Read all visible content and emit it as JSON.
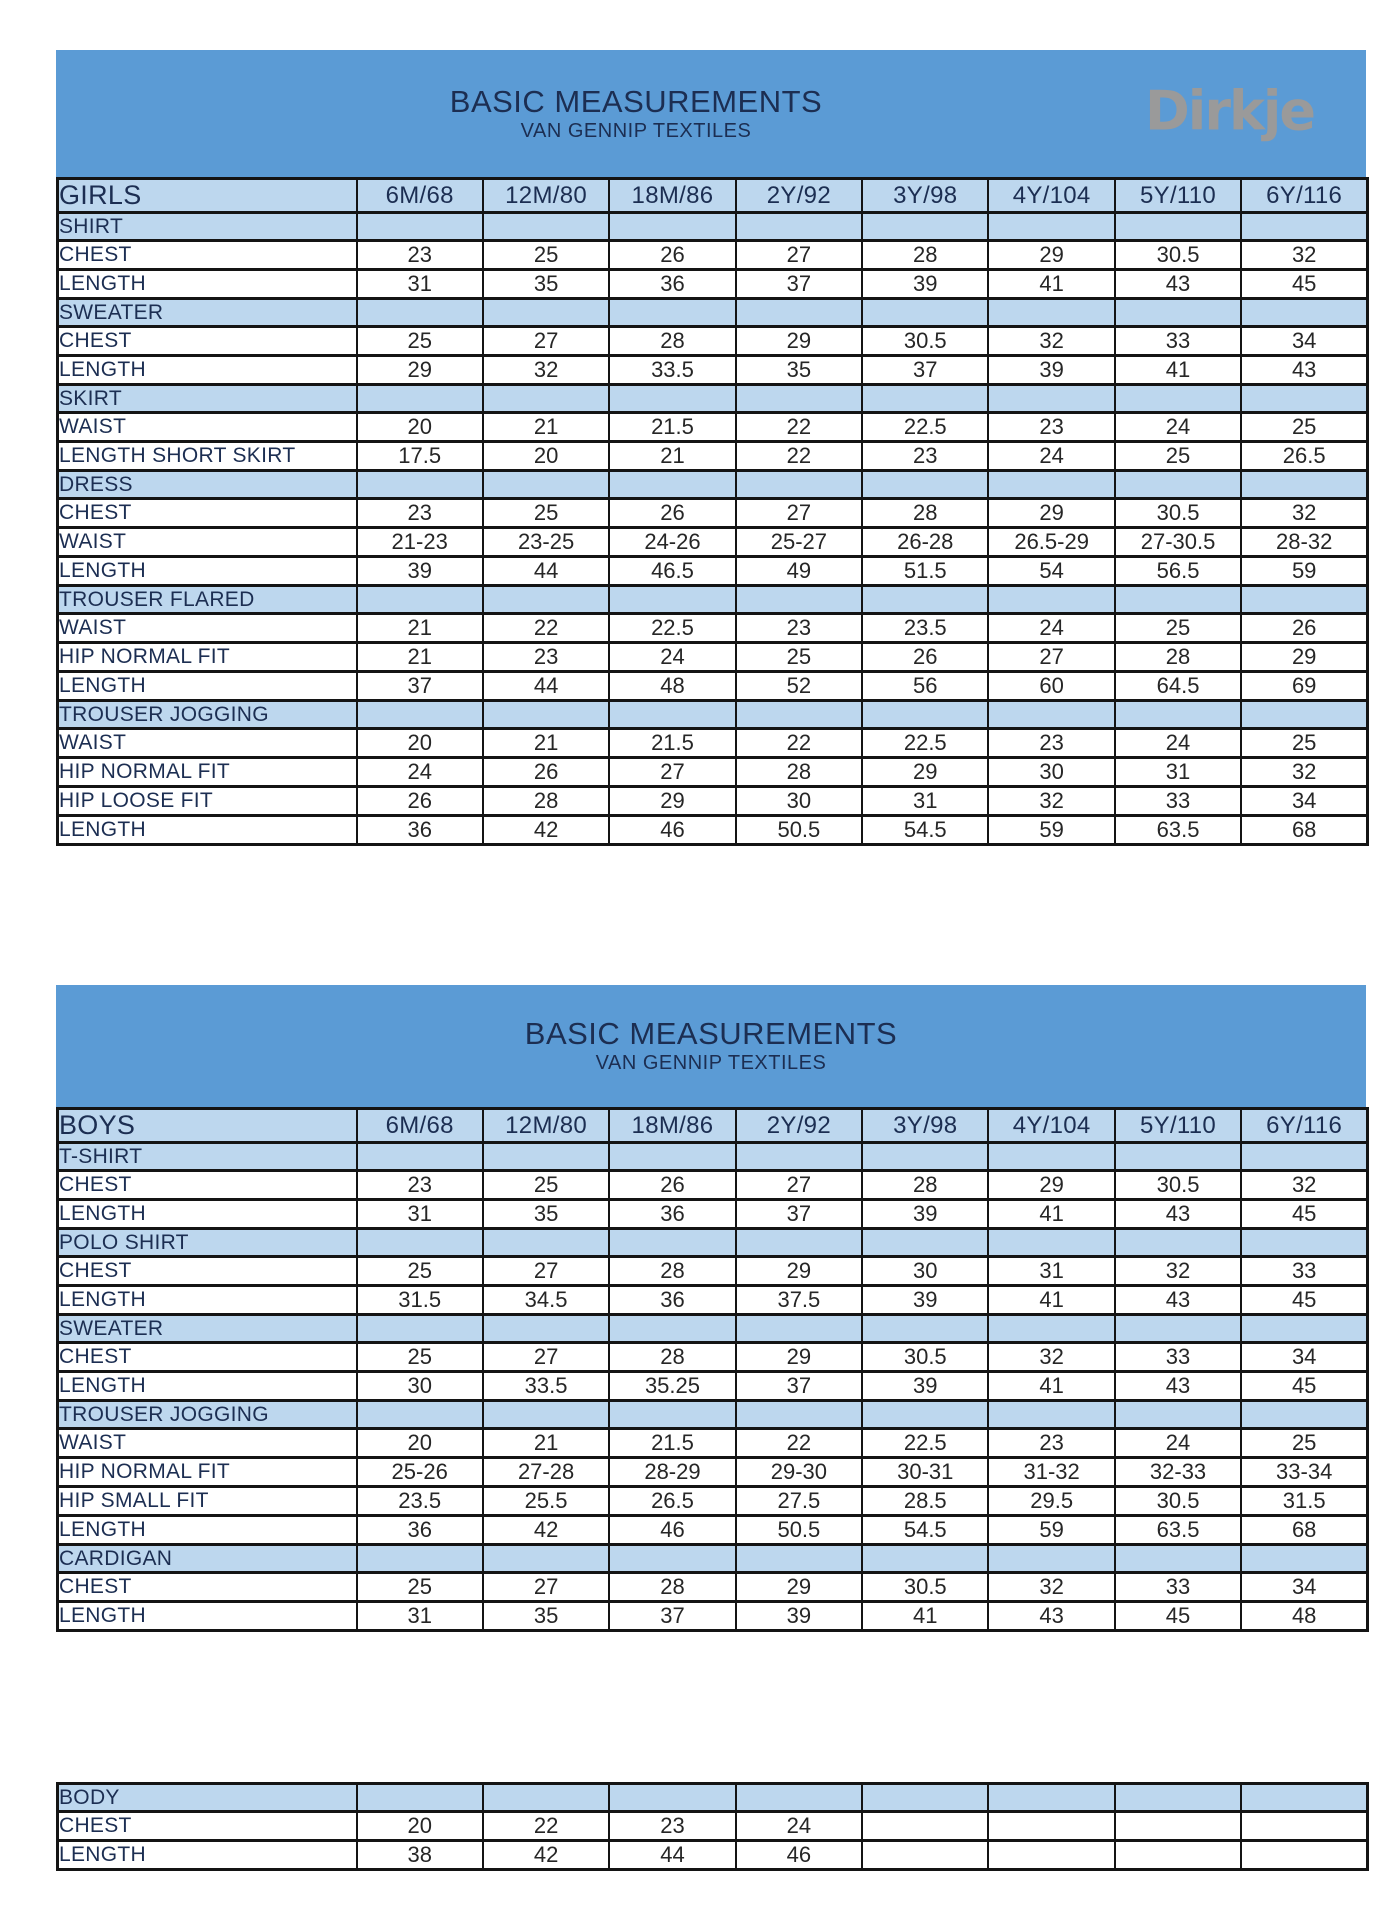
{
  "theme": {
    "panel_blue": "#5b9bd5",
    "row_blue": "#bdd7ee",
    "border": "#141414",
    "navy": "#1c2e52",
    "value_ink": "#262626",
    "logo_gray": "#9a9a9a"
  },
  "tables": [
    {
      "id": "girls",
      "title": "BASIC MEASUREMENTS",
      "subtitle": "VAN GENNIP TEXTILES",
      "logo": "Dirkje",
      "header": {
        "label": "GIRLS",
        "sizes": [
          "6M/68",
          "12M/80",
          "18M/86",
          "2Y/92",
          "3Y/98",
          "4Y/104",
          "5Y/110",
          "6Y/116"
        ]
      },
      "rows": [
        {
          "type": "section",
          "label": "SHIRT"
        },
        {
          "type": "data",
          "label": "CHEST",
          "values": [
            "23",
            "25",
            "26",
            "27",
            "28",
            "29",
            "30.5",
            "32"
          ]
        },
        {
          "type": "data",
          "label": "LENGTH",
          "values": [
            "31",
            "35",
            "36",
            "37",
            "39",
            "41",
            "43",
            "45"
          ]
        },
        {
          "type": "section",
          "label": "SWEATER"
        },
        {
          "type": "data",
          "label": "CHEST",
          "values": [
            "25",
            "27",
            "28",
            "29",
            "30.5",
            "32",
            "33",
            "34"
          ]
        },
        {
          "type": "data",
          "label": "LENGTH",
          "values": [
            "29",
            "32",
            "33.5",
            "35",
            "37",
            "39",
            "41",
            "43"
          ]
        },
        {
          "type": "section",
          "label": "SKIRT"
        },
        {
          "type": "data",
          "label": "WAIST",
          "values": [
            "20",
            "21",
            "21.5",
            "22",
            "22.5",
            "23",
            "24",
            "25"
          ]
        },
        {
          "type": "data",
          "label": "LENGTH SHORT SKIRT",
          "values": [
            "17.5",
            "20",
            "21",
            "22",
            "23",
            "24",
            "25",
            "26.5"
          ]
        },
        {
          "type": "section",
          "label": "DRESS"
        },
        {
          "type": "data",
          "label": "CHEST",
          "values": [
            "23",
            "25",
            "26",
            "27",
            "28",
            "29",
            "30.5",
            "32"
          ]
        },
        {
          "type": "data",
          "label": "WAIST",
          "values": [
            "21-23",
            "23-25",
            "24-26",
            "25-27",
            "26-28",
            "26.5-29",
            "27-30.5",
            "28-32"
          ]
        },
        {
          "type": "data",
          "label": "LENGTH",
          "values": [
            "39",
            "44",
            "46.5",
            "49",
            "51.5",
            "54",
            "56.5",
            "59"
          ]
        },
        {
          "type": "section",
          "label": "TROUSER FLARED"
        },
        {
          "type": "data",
          "label": "WAIST",
          "values": [
            "21",
            "22",
            "22.5",
            "23",
            "23.5",
            "24",
            "25",
            "26"
          ]
        },
        {
          "type": "data",
          "label": "HIP NORMAL FIT",
          "values": [
            "21",
            "23",
            "24",
            "25",
            "26",
            "27",
            "28",
            "29"
          ]
        },
        {
          "type": "data",
          "label": "LENGTH",
          "values": [
            "37",
            "44",
            "48",
            "52",
            "56",
            "60",
            "64.5",
            "69"
          ]
        },
        {
          "type": "section",
          "label": "TROUSER JOGGING"
        },
        {
          "type": "data",
          "label": "WAIST",
          "values": [
            "20",
            "21",
            "21.5",
            "22",
            "22.5",
            "23",
            "24",
            "25"
          ]
        },
        {
          "type": "data",
          "label": "HIP NORMAL FIT",
          "values": [
            "24",
            "26",
            "27",
            "28",
            "29",
            "30",
            "31",
            "32"
          ]
        },
        {
          "type": "data",
          "label": "HIP LOOSE FIT",
          "values": [
            "26",
            "28",
            "29",
            "30",
            "31",
            "32",
            "33",
            "34"
          ]
        },
        {
          "type": "data",
          "label": "LENGTH",
          "values": [
            "36",
            "42",
            "46",
            "50.5",
            "54.5",
            "59",
            "63.5",
            "68"
          ]
        }
      ]
    },
    {
      "id": "boys",
      "title": "BASIC MEASUREMENTS",
      "subtitle": "VAN GENNIP TEXTILES",
      "logo": null,
      "header": {
        "label": "BOYS",
        "sizes": [
          "6M/68",
          "12M/80",
          "18M/86",
          "2Y/92",
          "3Y/98",
          "4Y/104",
          "5Y/110",
          "6Y/116"
        ]
      },
      "rows": [
        {
          "type": "section",
          "label": "T-SHIRT"
        },
        {
          "type": "data",
          "label": "CHEST",
          "values": [
            "23",
            "25",
            "26",
            "27",
            "28",
            "29",
            "30.5",
            "32"
          ]
        },
        {
          "type": "data",
          "label": "LENGTH",
          "values": [
            "31",
            "35",
            "36",
            "37",
            "39",
            "41",
            "43",
            "45"
          ]
        },
        {
          "type": "section",
          "label": "POLO SHIRT"
        },
        {
          "type": "data",
          "label": "CHEST",
          "values": [
            "25",
            "27",
            "28",
            "29",
            "30",
            "31",
            "32",
            "33"
          ]
        },
        {
          "type": "data",
          "label": "LENGTH",
          "values": [
            "31.5",
            "34.5",
            "36",
            "37.5",
            "39",
            "41",
            "43",
            "45"
          ]
        },
        {
          "type": "section",
          "label": "SWEATER"
        },
        {
          "type": "data",
          "label": "CHEST",
          "values": [
            "25",
            "27",
            "28",
            "29",
            "30.5",
            "32",
            "33",
            "34"
          ]
        },
        {
          "type": "data",
          "label": "LENGTH",
          "values": [
            "30",
            "33.5",
            "35.25",
            "37",
            "39",
            "41",
            "43",
            "45"
          ]
        },
        {
          "type": "section",
          "label": "TROUSER JOGGING"
        },
        {
          "type": "data",
          "label": "WAIST",
          "values": [
            "20",
            "21",
            "21.5",
            "22",
            "22.5",
            "23",
            "24",
            "25"
          ]
        },
        {
          "type": "data",
          "label": "HIP NORMAL FIT",
          "values": [
            "25-26",
            "27-28",
            "28-29",
            "29-30",
            "30-31",
            "31-32",
            "32-33",
            "33-34"
          ]
        },
        {
          "type": "data",
          "label": "HIP SMALL FIT",
          "values": [
            "23.5",
            "25.5",
            "26.5",
            "27.5",
            "28.5",
            "29.5",
            "30.5",
            "31.5"
          ]
        },
        {
          "type": "data",
          "label": "LENGTH",
          "values": [
            "36",
            "42",
            "46",
            "50.5",
            "54.5",
            "59",
            "63.5",
            "68"
          ]
        },
        {
          "type": "section",
          "label": "CARDIGAN"
        },
        {
          "type": "data",
          "label": "CHEST",
          "values": [
            "25",
            "27",
            "28",
            "29",
            "30.5",
            "32",
            "33",
            "34"
          ]
        },
        {
          "type": "data",
          "label": "LENGTH",
          "values": [
            "31",
            "35",
            "37",
            "39",
            "41",
            "43",
            "45",
            "48"
          ]
        }
      ]
    },
    {
      "id": "bodytable",
      "title": null,
      "subtitle": null,
      "logo": null,
      "header": null,
      "rows": [
        {
          "type": "section",
          "label": "BODY"
        },
        {
          "type": "data",
          "label": "CHEST",
          "values": [
            "20",
            "22",
            "23",
            "24",
            "",
            "",
            "",
            ""
          ]
        },
        {
          "type": "data",
          "label": "LENGTH",
          "values": [
            "38",
            "42",
            "44",
            "46",
            "",
            "",
            "",
            ""
          ]
        }
      ]
    }
  ]
}
